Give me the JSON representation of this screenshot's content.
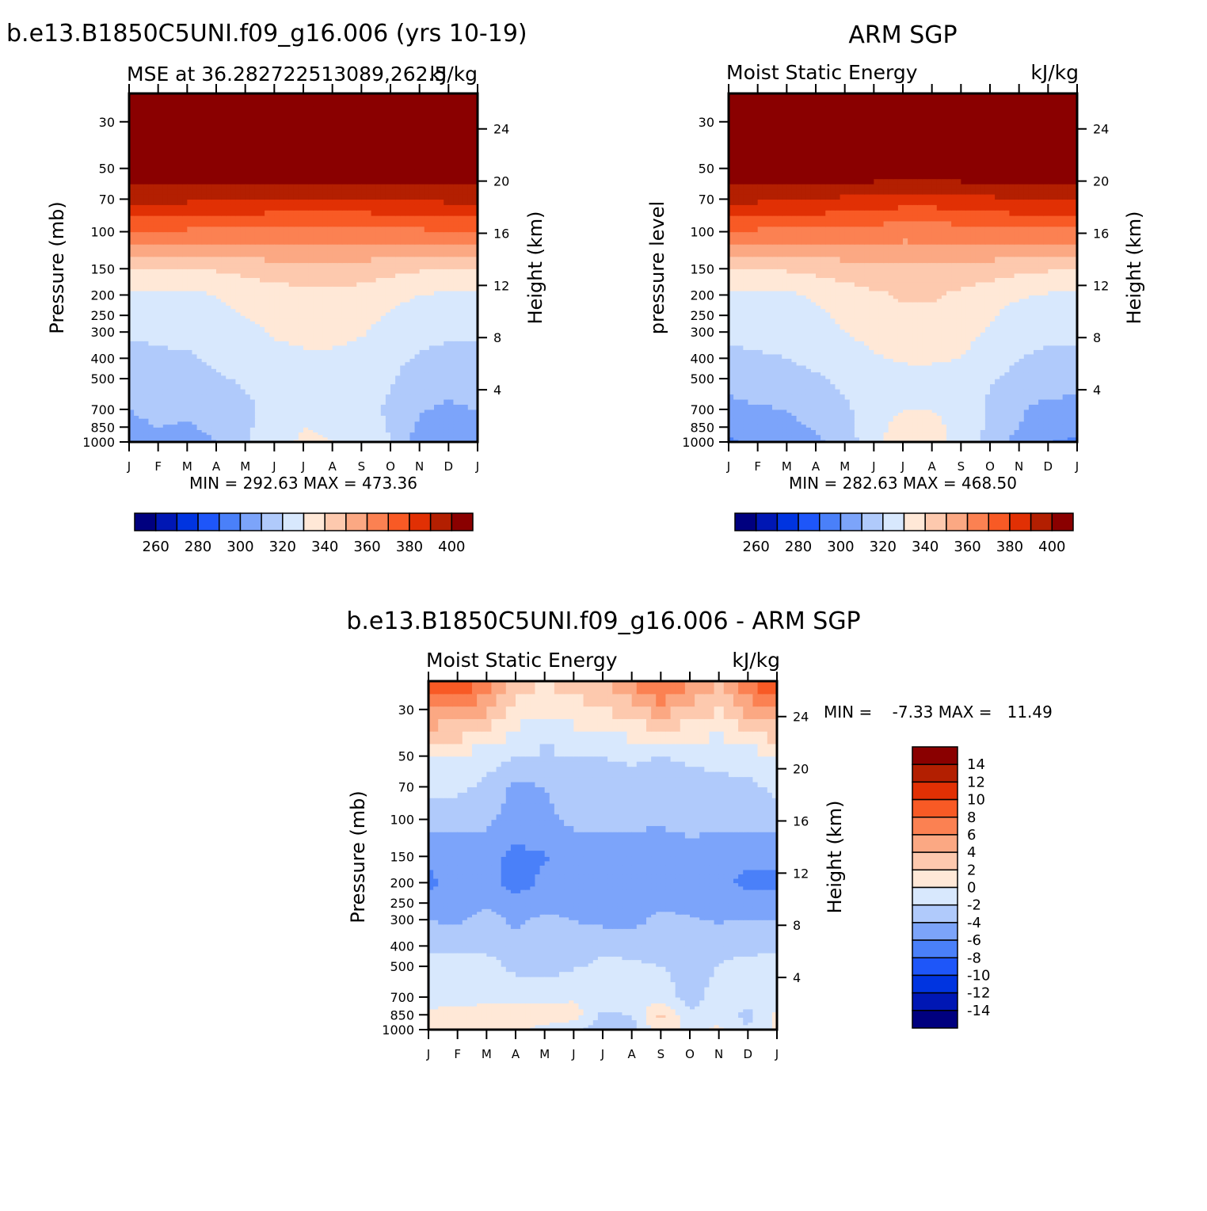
{
  "panels": [
    {
      "title": "b.e13.B1850C5UNI.f09_g16.006 (yrs 10-19)",
      "left_label": "MSE at 36.282722513089,262.5",
      "right_label": "kJ/kg",
      "ylabel": "Pressure (mb)",
      "ylabel2": "Height (km)",
      "minmax": "MIN = 292.63 MAX = 473.36"
    },
    {
      "title": "ARM SGP",
      "left_label": "Moist Static Energy",
      "right_label": "kJ/kg",
      "ylabel": "pressure level",
      "ylabel2": "Height (km)",
      "minmax": "MIN = 282.63 MAX = 468.50"
    },
    {
      "title": "b.e13.B1850C5UNI.f09_g16.006 - ARM SGP",
      "left_label": "Moist Static Energy",
      "right_label": "kJ/kg",
      "ylabel": "Pressure (mb)",
      "ylabel2": "Height (km)",
      "minmax": "MIN =    -7.33 MAX =   11.49"
    }
  ],
  "abs_colorbar": {
    "colors": [
      "#00007f",
      "#0017b4",
      "#0034e0",
      "#1e56f9",
      "#4a80f9",
      "#7ca4fa",
      "#b0cafb",
      "#d8e8fd",
      "#ffe8d7",
      "#fdc9ae",
      "#fba883",
      "#fb8152",
      "#f85a25",
      "#e13004",
      "#b31f01",
      "#8a0000"
    ],
    "tick_labels": [
      "260",
      "280",
      "300",
      "320",
      "340",
      "360",
      "380",
      "400"
    ]
  },
  "diff_colorbar": {
    "colors": [
      "#00007f",
      "#0017b4",
      "#0034e0",
      "#1e56f9",
      "#4a80f9",
      "#7ca4fa",
      "#b0cafb",
      "#d8e8fd",
      "#ffe8d7",
      "#fdc9ae",
      "#fba883",
      "#fb8152",
      "#f85a25",
      "#e13004",
      "#b31f01",
      "#8a0000"
    ],
    "tick_labels": [
      "14",
      "12",
      "10",
      "8",
      "6",
      "4",
      "2",
      "0",
      "-2",
      "-4",
      "-6",
      "-8",
      "-10",
      "-12",
      "-14"
    ]
  },
  "chart_data": [
    {
      "type": "heatmap",
      "title": "b.e13.B1850C5UNI.f09_g16.006 (yrs 10-19)",
      "subtitle": "MSE at 36.282722513089,262.5",
      "units": "kJ/kg",
      "x_tick_labels": [
        "J",
        "F",
        "M",
        "A",
        "M",
        "J",
        "J",
        "A",
        "S",
        "O",
        "N",
        "D",
        "J"
      ],
      "ylabel": "Pressure (mb)",
      "ylabel2": "Height (km)",
      "y_ticks": [
        30,
        50,
        70,
        100,
        150,
        200,
        250,
        300,
        400,
        500,
        700,
        850,
        1000
      ],
      "y2_ticks": [
        24,
        20,
        16,
        12,
        8,
        4
      ],
      "y_scale": "log",
      "y_reversed": true,
      "ylim": [
        1000,
        22
      ],
      "levels": [
        260,
        270,
        280,
        290,
        300,
        310,
        320,
        330,
        340,
        350,
        360,
        370,
        380,
        390,
        400
      ],
      "min": 292.63,
      "max": 473.36,
      "pressure_levels": [
        1000,
        850,
        700,
        500,
        400,
        300,
        250,
        200,
        150,
        100,
        70,
        50,
        22
      ],
      "z": [
        [
          305,
          308,
          306,
          310,
          318,
          328,
          331,
          330,
          327,
          320,
          305,
          301,
          305
        ],
        [
          308,
          310,
          309,
          312,
          318,
          326,
          330,
          329,
          326,
          319,
          308,
          304,
          308
        ],
        [
          310,
          312,
          312,
          314,
          318,
          323,
          326,
          326,
          324,
          318,
          311,
          308,
          310
        ],
        [
          316,
          317,
          317,
          319,
          321,
          324,
          325,
          325,
          324,
          321,
          316,
          315,
          316
        ],
        [
          318,
          319,
          319,
          321,
          323,
          327,
          328,
          328,
          326,
          322,
          319,
          318,
          318
        ],
        [
          321,
          321,
          322,
          324,
          327,
          331,
          333,
          333,
          331,
          326,
          322,
          321,
          321
        ],
        [
          323,
          323,
          324,
          327,
          330,
          333,
          335,
          335,
          333,
          329,
          325,
          323,
          323
        ],
        [
          327,
          327,
          327,
          330,
          333,
          335,
          337,
          338,
          336,
          333,
          330,
          328,
          327
        ],
        [
          340,
          340,
          340,
          341,
          343,
          345,
          346,
          346,
          345,
          343,
          341,
          340,
          340
        ],
        [
          369,
          369,
          368,
          368,
          367,
          367,
          366,
          366,
          367,
          367,
          368,
          369,
          369
        ],
        [
          392,
          392,
          392,
          391,
          390,
          389,
          389,
          389,
          389,
          390,
          391,
          392,
          392
        ],
        [
          410,
          410,
          410,
          410,
          410,
          410,
          410,
          410,
          410,
          410,
          410,
          410,
          410
        ],
        [
          430,
          430,
          430,
          430,
          430,
          430,
          430,
          430,
          430,
          430,
          430,
          430,
          430
        ]
      ]
    },
    {
      "type": "heatmap",
      "title": "ARM SGP",
      "subtitle": "Moist Static Energy",
      "units": "kJ/kg",
      "x_tick_labels": [
        "J",
        "F",
        "M",
        "A",
        "M",
        "J",
        "J",
        "A",
        "S",
        "O",
        "N",
        "D",
        "J"
      ],
      "ylabel": "pressure level",
      "ylabel2": "Height (km)",
      "y_ticks": [
        30,
        50,
        70,
        100,
        150,
        200,
        250,
        300,
        400,
        500,
        700,
        850,
        1000
      ],
      "y2_ticks": [
        24,
        20,
        16,
        12,
        8,
        4
      ],
      "y_scale": "log",
      "y_reversed": true,
      "ylim": [
        1000,
        22
      ],
      "levels": [
        260,
        270,
        280,
        290,
        300,
        310,
        320,
        330,
        340,
        350,
        360,
        370,
        380,
        390,
        400
      ],
      "min": 282.63,
      "max": 468.5,
      "pressure_levels": [
        1000,
        850,
        700,
        500,
        400,
        300,
        250,
        200,
        150,
        100,
        70,
        50,
        22
      ],
      "z": [
        [
          298,
          302,
          304,
          308,
          315,
          326,
          336,
          334,
          326,
          316,
          306,
          300,
          298
        ],
        [
          304,
          307,
          308,
          311,
          317,
          327,
          334,
          333,
          327,
          318,
          310,
          305,
          304
        ],
        [
          306,
          309,
          310,
          313,
          318,
          325,
          330,
          330,
          326,
          318,
          311,
          307,
          306
        ],
        [
          315,
          316,
          317,
          319,
          322,
          326,
          327,
          327,
          326,
          321,
          317,
          315,
          315
        ],
        [
          318,
          319,
          320,
          322,
          325,
          329,
          331,
          331,
          330,
          325,
          320,
          318,
          318
        ],
        [
          322,
          322,
          323,
          326,
          330,
          333,
          335,
          335,
          333,
          329,
          324,
          322,
          322
        ],
        [
          324,
          324,
          325,
          328,
          332,
          336,
          338,
          338,
          335,
          331,
          326,
          324,
          324
        ],
        [
          328,
          328,
          328,
          331,
          335,
          338,
          341,
          341,
          338,
          334,
          331,
          329,
          328
        ],
        [
          341,
          341,
          341,
          343,
          345,
          347,
          348,
          348,
          347,
          345,
          342,
          341,
          341
        ],
        [
          368,
          368,
          367,
          367,
          366,
          365,
          364,
          364,
          365,
          366,
          367,
          368,
          368
        ],
        [
          392,
          392,
          391,
          390,
          388,
          386,
          385,
          385,
          386,
          388,
          390,
          391,
          392
        ],
        [
          410,
          410,
          410,
          410,
          410,
          410,
          410,
          410,
          410,
          410,
          410,
          410,
          410
        ],
        [
          430,
          430,
          430,
          430,
          430,
          430,
          430,
          430,
          430,
          430,
          430,
          430,
          430
        ]
      ]
    },
    {
      "type": "heatmap",
      "title": "b.e13.B1850C5UNI.f09_g16.006 - ARM SGP",
      "subtitle": "Moist Static Energy",
      "units": "kJ/kg",
      "x_tick_labels": [
        "J",
        "F",
        "M",
        "A",
        "M",
        "J",
        "J",
        "A",
        "S",
        "O",
        "N",
        "D",
        "J"
      ],
      "ylabel": "Pressure (mb)",
      "ylabel2": "Height (km)",
      "y_ticks": [
        30,
        50,
        70,
        100,
        150,
        200,
        250,
        300,
        400,
        500,
        700,
        850,
        1000
      ],
      "y2_ticks": [
        24,
        20,
        16,
        12,
        8,
        4
      ],
      "y_scale": "log",
      "y_reversed": true,
      "ylim": [
        1000,
        22
      ],
      "levels": [
        -14,
        -12,
        -10,
        -8,
        -6,
        -4,
        -2,
        0,
        2,
        4,
        6,
        8,
        10,
        12,
        14
      ],
      "min": -7.33,
      "max": 11.49,
      "pressure_levels": [
        1000,
        850,
        700,
        500,
        400,
        300,
        250,
        200,
        150,
        100,
        70,
        50,
        22
      ],
      "z": [
        [
          0.5,
          0.8,
          0.2,
          0.3,
          -0.5,
          -1.5,
          -3.5,
          -3.0,
          1.5,
          -1.0,
          0.5,
          -2.0,
          0.5
        ],
        [
          0.3,
          0.5,
          0.5,
          0.8,
          0.9,
          1.0,
          -2.5,
          -2.0,
          2.5,
          -1.5,
          -1.0,
          -2.5,
          0.3
        ],
        [
          -0.5,
          -0.5,
          -0.3,
          -0.5,
          -0.5,
          -0.3,
          -0.2,
          -0.5,
          -0.8,
          -3.0,
          -1.0,
          -1.5,
          -0.5
        ],
        [
          -1.0,
          -1.0,
          -1.2,
          -2.5,
          -3.0,
          -2.2,
          -1.5,
          -1.5,
          -2.0,
          -2.8,
          -2.0,
          -1.5,
          -1.0
        ],
        [
          -2.5,
          -2.5,
          -2.5,
          -3.0,
          -3.2,
          -3.5,
          -2.5,
          -2.8,
          -3.5,
          -3.0,
          -2.2,
          -2.5,
          -2.5
        ],
        [
          -4.0,
          -4.5,
          -3.0,
          -4.5,
          -3.5,
          -4.0,
          -4.5,
          -4.5,
          -3.5,
          -3.8,
          -4.2,
          -4.0,
          -4.0
        ],
        [
          -5.0,
          -5.5,
          -4.5,
          -5.0,
          -4.8,
          -4.8,
          -5.0,
          -4.8,
          -4.5,
          -4.5,
          -4.8,
          -5.0,
          -5.0
        ],
        [
          -6.5,
          -5.0,
          -5.0,
          -7.0,
          -5.5,
          -5.2,
          -5.5,
          -5.0,
          -6.0,
          -5.0,
          -5.5,
          -6.5,
          -6.5
        ],
        [
          -5.5,
          -5.5,
          -5.5,
          -6.5,
          -6.2,
          -5.5,
          -5.5,
          -5.0,
          -6.0,
          -5.2,
          -6.0,
          -5.5,
          -5.5
        ],
        [
          -3.0,
          -3.5,
          -3.5,
          -5.0,
          -4.5,
          -3.5,
          -3.0,
          -3.5,
          -3.5,
          -3.0,
          -3.0,
          -3.5,
          -3.0
        ],
        [
          -1.5,
          -1.5,
          -2.5,
          -4.5,
          -4.0,
          -3.0,
          -2.5,
          -2.5,
          -2.8,
          -2.5,
          -2.5,
          -2.5,
          -1.5
        ],
        [
          -0.5,
          -0.5,
          -1.0,
          -2.0,
          -2.5,
          -2.2,
          -2.0,
          -1.8,
          -2.0,
          -1.8,
          -1.5,
          -1.0,
          -0.5
        ],
        [
          10.5,
          10.0,
          7.5,
          3.0,
          2.0,
          3.0,
          4.0,
          6.0,
          9.0,
          6.5,
          4.0,
          8.0,
          10.5
        ]
      ]
    }
  ]
}
